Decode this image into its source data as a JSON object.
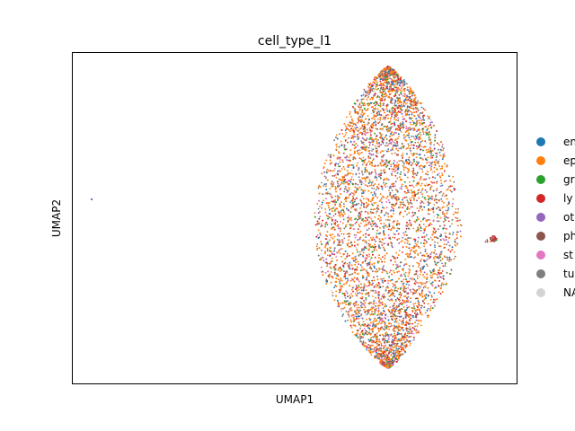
{
  "chart_data": {
    "type": "scatter",
    "title": "cell_type_l1",
    "xlabel": "UMAP1",
    "ylabel": "UMAP2",
    "grid": false,
    "legend_placement": "right",
    "series": [
      {
        "name": "en",
        "color": "#1f77b4"
      },
      {
        "name": "ep",
        "color": "#ff7f0e"
      },
      {
        "name": "gr",
        "color": "#2ca02c"
      },
      {
        "name": "ly",
        "color": "#d62728"
      },
      {
        "name": "ot",
        "color": "#9467bd"
      },
      {
        "name": "ph",
        "color": "#8c564b"
      },
      {
        "name": "st",
        "color": "#e377c2"
      },
      {
        "name": "tu",
        "color": "#7f7f7f"
      },
      {
        "name": "NA",
        "color": "#d3d3d3"
      }
    ],
    "mixture_weights": [
      0.08,
      0.42,
      0.05,
      0.12,
      0.08,
      0.05,
      0.06,
      0.12,
      0.02
    ]
  }
}
